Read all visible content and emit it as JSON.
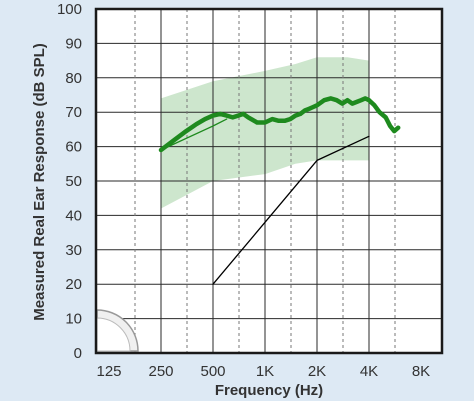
{
  "chart_data": {
    "type": "line",
    "title": "",
    "xlabel": "Frequency (Hz)",
    "ylabel": "Measured Real Ear Response (dB SPL)",
    "x_scale": "log2",
    "xlim": [
      125,
      8000
    ],
    "ylim": [
      0,
      100
    ],
    "x_ticks": [
      {
        "value": 125,
        "label": "125"
      },
      {
        "value": 250,
        "label": "250"
      },
      {
        "value": 500,
        "label": "500"
      },
      {
        "value": 1000,
        "label": "1K"
      },
      {
        "value": 2000,
        "label": "2K"
      },
      {
        "value": 4000,
        "label": "4K"
      },
      {
        "value": 8000,
        "label": "8K"
      }
    ],
    "y_ticks": [
      0,
      10,
      20,
      30,
      40,
      50,
      60,
      70,
      80,
      90,
      100
    ],
    "grid": true,
    "band": {
      "color": "#cde6cd",
      "x": [
        250,
        500,
        1000,
        1500,
        2000,
        3000,
        4000
      ],
      "upper": [
        74,
        79,
        82,
        84,
        86,
        86,
        85
      ],
      "lower": [
        42,
        50,
        52,
        55,
        56,
        56,
        56
      ]
    },
    "series": [
      {
        "color": "#1e8a1e",
        "stroke": "thick",
        "x": [
          250,
          300,
          350,
          400,
          450,
          500,
          550,
          600,
          650,
          700,
          750,
          800,
          900,
          1000,
          1100,
          1200,
          1300,
          1400,
          1500,
          1600,
          1700,
          1800,
          1900,
          2000,
          2200,
          2400,
          2600,
          2800,
          3000,
          3200,
          3400,
          3600,
          3800,
          4000,
          4300,
          4600,
          5000,
          5300,
          5600,
          5900
        ],
        "y": [
          59,
          62,
          64.5,
          66.5,
          68,
          69,
          69.5,
          69,
          68.5,
          69,
          69.5,
          68.5,
          67,
          67,
          68,
          67.5,
          67.5,
          68,
          69,
          69.5,
          70.5,
          71,
          71.5,
          72,
          73.5,
          74,
          73.5,
          72.5,
          73.5,
          72.5,
          73,
          73.5,
          74,
          73.5,
          72,
          70,
          68.5,
          66,
          64.5,
          65.5
        ]
      },
      {
        "color": "#1e8a1e",
        "stroke": "thin",
        "x": [
          250,
          500,
          600
        ],
        "y": [
          59,
          66,
          68
        ]
      },
      {
        "color": "#000000",
        "stroke": "thin",
        "x": [
          500,
          1000,
          2000,
          4000
        ],
        "y": [
          20,
          38,
          56,
          63
        ]
      }
    ]
  }
}
